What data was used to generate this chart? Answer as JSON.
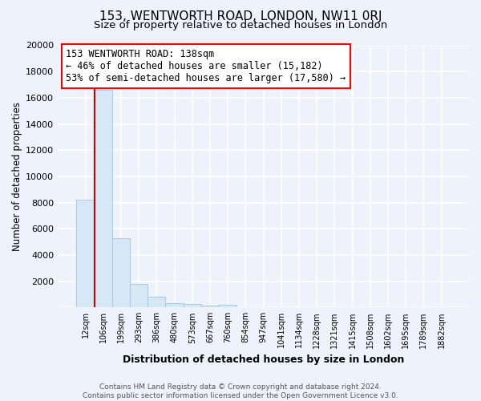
{
  "title1": "153, WENTWORTH ROAD, LONDON, NW11 0RJ",
  "title2": "Size of property relative to detached houses in London",
  "xlabel": "Distribution of detached houses by size in London",
  "ylabel": "Number of detached properties",
  "annotation_line1": "153 WENTWORTH ROAD: 138sqm",
  "annotation_line2": "← 46% of detached houses are smaller (15,182)",
  "annotation_line3": "53% of semi-detached houses are larger (17,580) →",
  "bar_edge_color": "#a8c8e8",
  "bar_face_color": "#d6e8f5",
  "marker_color": "#cc0000",
  "categories": [
    "12sqm",
    "106sqm",
    "199sqm",
    "293sqm",
    "386sqm",
    "480sqm",
    "573sqm",
    "667sqm",
    "760sqm",
    "854sqm",
    "947sqm",
    "1041sqm",
    "1134sqm",
    "1228sqm",
    "1321sqm",
    "1415sqm",
    "1508sqm",
    "1602sqm",
    "1695sqm",
    "1789sqm",
    "1882sqm"
  ],
  "values": [
    8200,
    16600,
    5300,
    1800,
    800,
    350,
    250,
    170,
    180,
    0,
    0,
    0,
    0,
    0,
    0,
    0,
    0,
    0,
    0,
    0,
    0
  ],
  "ylim": [
    0,
    20000
  ],
  "yticks": [
    0,
    2000,
    4000,
    6000,
    8000,
    10000,
    12000,
    14000,
    16000,
    18000,
    20000
  ],
  "marker_bar_index": 1,
  "footer": "Contains HM Land Registry data © Crown copyright and database right 2024.\nContains public sector information licensed under the Open Government Licence v3.0.",
  "bg_color": "#eef2fb",
  "title1_fontsize": 11,
  "title2_fontsize": 9.5,
  "xlabel_fontsize": 9,
  "ylabel_fontsize": 8.5,
  "annotation_fontsize": 8.5,
  "footer_fontsize": 6.5
}
